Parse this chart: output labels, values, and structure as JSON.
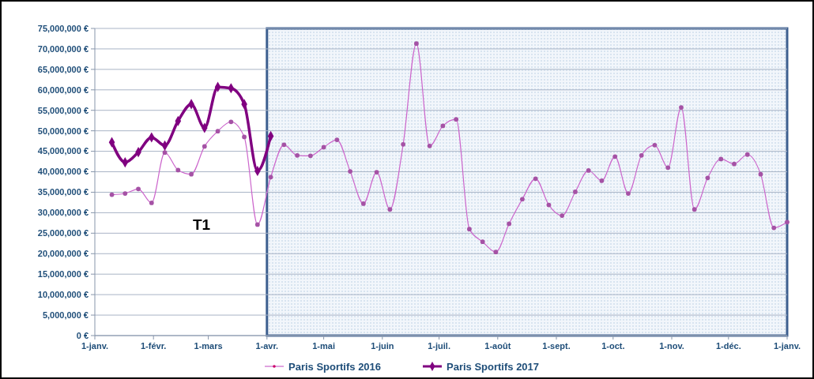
{
  "chart_data": {
    "type": "line",
    "x": [
      "2016-01-10",
      "2016-01-17",
      "2016-01-24",
      "2016-01-31",
      "2016-02-07",
      "2016-02-14",
      "2016-02-21",
      "2016-02-28",
      "2016-03-06",
      "2016-03-13",
      "2016-03-20",
      "2016-03-27",
      "2016-04-03",
      "2016-04-10",
      "2016-04-17",
      "2016-04-24",
      "2016-05-01",
      "2016-05-08",
      "2016-05-15",
      "2016-05-22",
      "2016-05-29",
      "2016-06-05",
      "2016-06-12",
      "2016-06-19",
      "2016-06-26",
      "2016-07-03",
      "2016-07-10",
      "2016-07-17",
      "2016-07-24",
      "2016-07-31",
      "2016-08-07",
      "2016-08-14",
      "2016-08-21",
      "2016-08-28",
      "2016-09-04",
      "2016-09-11",
      "2016-09-18",
      "2016-09-25",
      "2016-10-02",
      "2016-10-09",
      "2016-10-16",
      "2016-10-23",
      "2016-10-30",
      "2016-11-06",
      "2016-11-13",
      "2016-11-20",
      "2016-11-27",
      "2016-12-04",
      "2016-12-11",
      "2016-12-18",
      "2016-12-25",
      "2017-01-01"
    ],
    "series": [
      {
        "name": "Paris Sportifs 2016",
        "color": "#cc66cc",
        "marker": "circle",
        "values": [
          34400000,
          34700000,
          35800000,
          32400000,
          44700000,
          40400000,
          39400000,
          46200000,
          49900000,
          52200000,
          48500000,
          27100000,
          38700000,
          46600000,
          44000000,
          43900000,
          46000000,
          47800000,
          40100000,
          32200000,
          39900000,
          30800000,
          46700000,
          71300000,
          46300000,
          51200000,
          52800000,
          26000000,
          22900000,
          20400000,
          27300000,
          33300000,
          38300000,
          31900000,
          29300000,
          35100000,
          40300000,
          37800000,
          43700000,
          34700000,
          44000000,
          46500000,
          41000000,
          55700000,
          30800000,
          38500000,
          43100000,
          41900000,
          44200000,
          39400000,
          26300000,
          27700000
        ]
      },
      {
        "name": "Paris Sportifs 2017",
        "color": "#800080",
        "marker": "diamond",
        "x": [
          "2016-01-10",
          "2016-01-17",
          "2016-01-24",
          "2016-01-31",
          "2016-02-07",
          "2016-02-14",
          "2016-02-21",
          "2016-02-28",
          "2016-03-06",
          "2016-03-13",
          "2016-03-20",
          "2016-03-27",
          "2016-04-03"
        ],
        "values": [
          47200000,
          42300000,
          44800000,
          48400000,
          46400000,
          52400000,
          56500000,
          50700000,
          60700000,
          60400000,
          56500000,
          40200000,
          48700000
        ]
      }
    ],
    "xlim": [
      "2016-01-01",
      "2017-01-01"
    ],
    "xticks": [
      {
        "value": "2016-01-01",
        "label": "1-janv."
      },
      {
        "value": "2016-02-01",
        "label": "1-févr."
      },
      {
        "value": "2016-03-01",
        "label": "1-mars"
      },
      {
        "value": "2016-04-01",
        "label": "1-avr."
      },
      {
        "value": "2016-05-01",
        "label": "1-mai"
      },
      {
        "value": "2016-06-01",
        "label": "1-juin"
      },
      {
        "value": "2016-07-01",
        "label": "1-juil."
      },
      {
        "value": "2016-08-01",
        "label": "1-août"
      },
      {
        "value": "2016-09-01",
        "label": "1-sept."
      },
      {
        "value": "2016-10-01",
        "label": "1-oct."
      },
      {
        "value": "2016-11-01",
        "label": "1-nov."
      },
      {
        "value": "2016-12-01",
        "label": "1-déc."
      },
      {
        "value": "2017-01-01",
        "label": "1-janv."
      }
    ],
    "ylim": [
      0,
      75000000
    ],
    "yticks": [
      {
        "value": 0,
        "label": "0 €"
      },
      {
        "value": 5000000,
        "label": "5,000,000 €"
      },
      {
        "value": 10000000,
        "label": "10,000,000 €"
      },
      {
        "value": 15000000,
        "label": "15,000,000 €"
      },
      {
        "value": 20000000,
        "label": "20,000,000 €"
      },
      {
        "value": 25000000,
        "label": "25,000,000 €"
      },
      {
        "value": 30000000,
        "label": "30,000,000 €"
      },
      {
        "value": 35000000,
        "label": "35,000,000 €"
      },
      {
        "value": 40000000,
        "label": "40,000,000 €"
      },
      {
        "value": 45000000,
        "label": "45,000,000 €"
      },
      {
        "value": 50000000,
        "label": "50,000,000 €"
      },
      {
        "value": 55000000,
        "label": "55,000,000 €"
      },
      {
        "value": 60000000,
        "label": "60,000,000 €"
      },
      {
        "value": 65000000,
        "label": "65,000,000 €"
      },
      {
        "value": 70000000,
        "label": "70,000,000 €"
      },
      {
        "value": 75000000,
        "label": "75,000,000 €"
      }
    ],
    "bands": [
      {
        "axis": "x",
        "from": "2016-04-01",
        "to": "2017-01-01",
        "color": "#3d5f8f"
      }
    ],
    "annotations": [
      "T1"
    ],
    "grid": "y",
    "legend": "bottom"
  }
}
